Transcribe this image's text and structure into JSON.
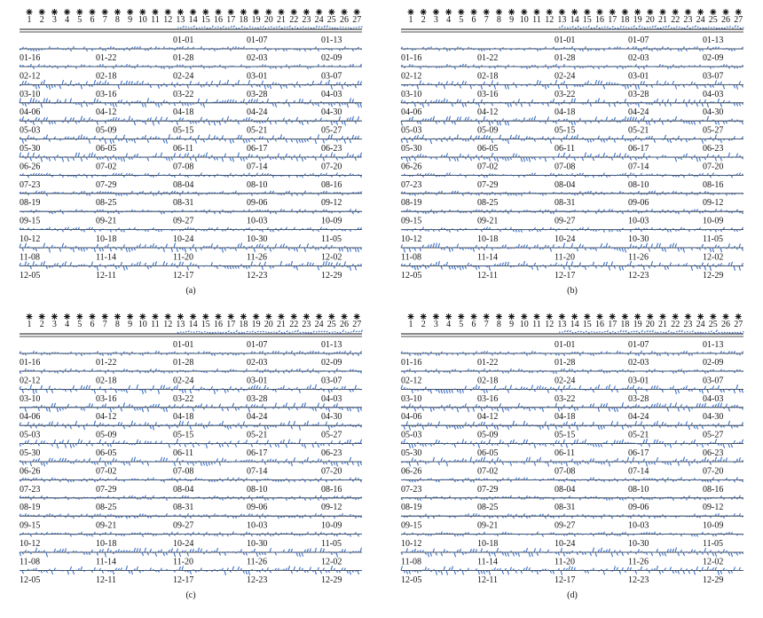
{
  "header_numbers": [
    1,
    2,
    3,
    4,
    5,
    6,
    7,
    8,
    9,
    10,
    11,
    12,
    13,
    14,
    15,
    16,
    17,
    18,
    19,
    20,
    21,
    22,
    23,
    24,
    25,
    26,
    27
  ],
  "first_row": [
    "01-01",
    "01-07",
    "01-13"
  ],
  "rows": [
    [
      "01-16",
      "01-22",
      "01-28",
      "02-03",
      "02-09"
    ],
    [
      "02-12",
      "02-18",
      "02-24",
      "03-01",
      "03-07"
    ],
    [
      "03-10",
      "03-16",
      "03-22",
      "03-28",
      "04-03"
    ],
    [
      "04-06",
      "04-12",
      "04-18",
      "04-24",
      "04-30"
    ],
    [
      "05-03",
      "05-09",
      "05-15",
      "05-21",
      "05-27"
    ],
    [
      "05-30",
      "06-05",
      "06-11",
      "06-17",
      "06-23"
    ],
    [
      "06-26",
      "07-02",
      "07-08",
      "07-14",
      "07-20"
    ],
    [
      "07-23",
      "07-29",
      "08-04",
      "08-10",
      "08-16"
    ],
    [
      "08-19",
      "08-25",
      "08-31",
      "09-06",
      "09-12"
    ],
    [
      "09-15",
      "09-21",
      "09-27",
      "10-03",
      "10-09"
    ],
    [
      "10-12",
      "10-18",
      "10-24",
      "10-30",
      "11-05"
    ],
    [
      "11-08",
      "11-14",
      "11-20",
      "11-26",
      "12-02"
    ],
    [
      "12-05",
      "12-11",
      "12-17",
      "12-23",
      "12-29"
    ]
  ],
  "panels": [
    {
      "caption": "(a)"
    },
    {
      "caption": "(b)"
    },
    {
      "caption": "(c)"
    },
    {
      "caption": "(d)"
    }
  ]
}
